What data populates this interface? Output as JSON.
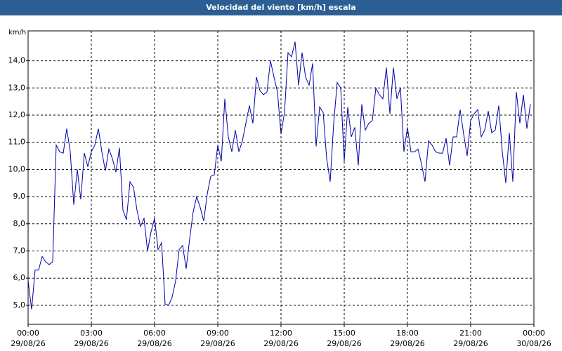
{
  "chart_data": {
    "type": "line",
    "title": "Velocidad del viento [km/h] escala",
    "y_label": "km/h",
    "x": [
      0,
      10,
      20,
      30,
      40,
      50,
      60,
      70,
      80,
      90,
      100,
      110,
      120,
      130,
      140,
      150,
      160,
      170,
      180,
      190,
      200,
      210,
      220,
      230,
      240,
      250,
      260,
      270,
      280,
      290,
      300,
      310,
      320,
      330,
      340,
      350,
      360,
      370,
      380,
      390,
      400,
      410,
      420,
      430,
      440,
      450,
      460,
      470,
      480,
      490,
      500,
      510,
      520,
      530,
      540,
      550,
      560,
      570,
      580,
      590,
      600,
      610,
      620,
      630,
      640,
      650,
      660,
      670,
      680,
      690,
      700,
      710,
      720,
      730,
      740,
      750,
      760,
      770,
      780,
      790,
      800,
      810,
      820,
      830,
      840,
      850,
      860,
      870,
      880,
      890,
      900,
      910,
      920,
      930,
      940,
      950,
      960,
      970,
      980,
      990,
      1000,
      1010,
      1020,
      1030,
      1040,
      1050,
      1060,
      1070,
      1080,
      1090,
      1100,
      1110,
      1120,
      1130,
      1140,
      1150,
      1160,
      1170,
      1180,
      1190,
      1200,
      1210,
      1220,
      1230,
      1240,
      1250,
      1260,
      1270,
      1280,
      1290,
      1300,
      1310,
      1320,
      1330,
      1340,
      1350,
      1360,
      1370,
      1380,
      1390,
      1400,
      1410,
      1420,
      1430
    ],
    "series": [
      {
        "color": "#0000a8",
        "values": [
          5.9,
          4.85,
          6.3,
          6.3,
          6.8,
          6.6,
          6.5,
          6.6,
          10.9,
          10.65,
          10.6,
          11.5,
          10.65,
          8.7,
          10.0,
          8.9,
          10.6,
          10.1,
          10.65,
          10.9,
          11.5,
          10.65,
          9.95,
          10.75,
          10.4,
          9.9,
          10.8,
          8.5,
          8.15,
          9.55,
          9.35,
          8.5,
          7.9,
          8.2,
          7.0,
          7.7,
          8.2,
          7.05,
          7.3,
          5.05,
          5.0,
          5.3,
          5.9,
          7.05,
          7.2,
          6.35,
          7.45,
          8.45,
          9.0,
          8.6,
          8.1,
          9.1,
          9.75,
          9.8,
          10.9,
          10.3,
          12.6,
          11.2,
          10.65,
          11.45,
          10.65,
          11.05,
          11.7,
          12.35,
          11.7,
          13.4,
          12.9,
          12.75,
          12.85,
          14.0,
          13.4,
          12.85,
          11.3,
          12.1,
          14.3,
          14.15,
          14.7,
          13.1,
          14.3,
          13.4,
          13.1,
          13.9,
          10.85,
          12.3,
          12.1,
          10.4,
          9.55,
          11.7,
          13.2,
          13.0,
          10.3,
          12.3,
          11.2,
          11.55,
          10.15,
          12.4,
          11.45,
          11.7,
          11.8,
          13.0,
          12.75,
          12.6,
          13.75,
          12.05,
          13.75,
          12.6,
          13.0,
          10.65,
          11.55,
          10.65,
          10.65,
          10.75,
          10.2,
          9.55,
          11.05,
          10.9,
          10.65,
          10.6,
          10.6,
          11.15,
          10.15,
          11.2,
          11.2,
          12.2,
          11.3,
          10.5,
          11.8,
          12.05,
          12.2,
          11.2,
          11.45,
          12.15,
          11.35,
          11.45,
          12.35,
          10.65,
          9.5,
          11.35,
          9.55,
          12.85,
          11.7,
          12.75,
          11.5,
          12.4
        ]
      }
    ],
    "xlim": [
      0,
      1440
    ],
    "xticks": [
      {
        "value": 0,
        "label": [
          "00:00",
          "29/08/26"
        ]
      },
      {
        "value": 180,
        "label": [
          "03:00",
          "29/08/26"
        ]
      },
      {
        "value": 360,
        "label": [
          "06:00",
          "29/08/26"
        ]
      },
      {
        "value": 540,
        "label": [
          "09:00",
          "29/08/26"
        ]
      },
      {
        "value": 720,
        "label": [
          "12:00",
          "29/08/26"
        ]
      },
      {
        "value": 900,
        "label": [
          "15:00",
          "29/08/26"
        ]
      },
      {
        "value": 1080,
        "label": [
          "18:00",
          "29/08/26"
        ]
      },
      {
        "value": 1260,
        "label": [
          "21:00",
          "29/08/26"
        ]
      },
      {
        "value": 1440,
        "label": [
          "00:00",
          "30/08/26"
        ]
      }
    ],
    "ylim": [
      4.3,
      15.1
    ],
    "yticks": [
      {
        "value": 5,
        "label": "5,0"
      },
      {
        "value": 6,
        "label": "6,0"
      },
      {
        "value": 7,
        "label": "7,0"
      },
      {
        "value": 8,
        "label": "8,0"
      },
      {
        "value": 9,
        "label": "9,0"
      },
      {
        "value": 10,
        "label": "10,0"
      },
      {
        "value": 11,
        "label": "11,0"
      },
      {
        "value": 12,
        "label": "12,0"
      },
      {
        "value": 13,
        "label": "13,0"
      },
      {
        "value": 14,
        "label": "14,0"
      }
    ],
    "grid": true
  }
}
